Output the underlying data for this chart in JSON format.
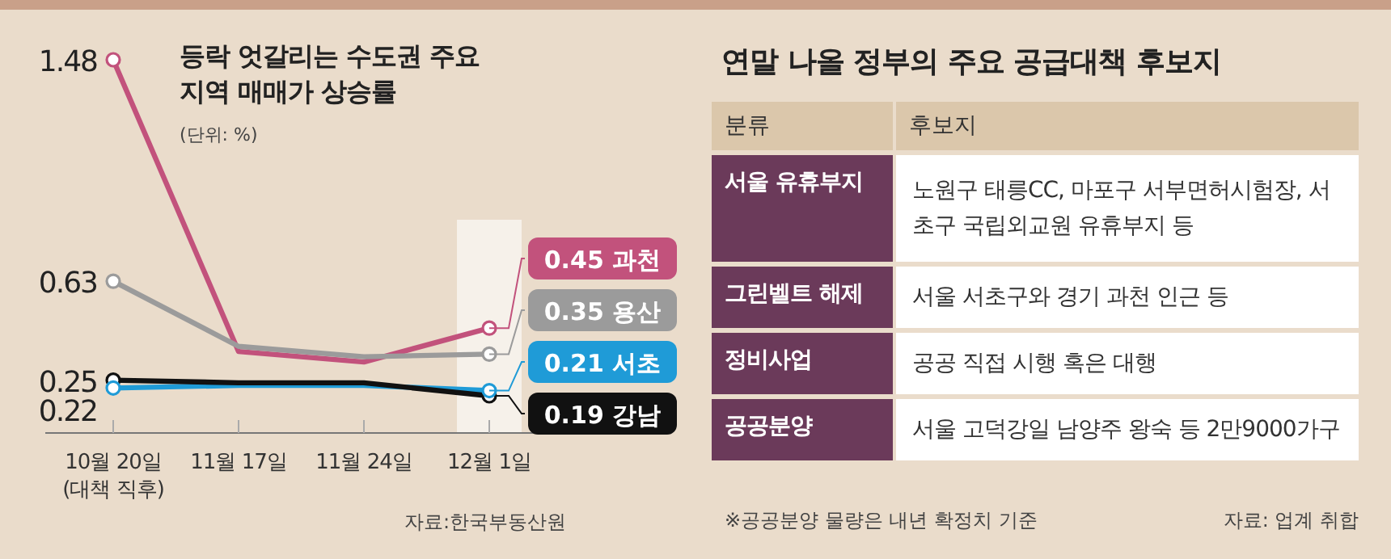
{
  "chart_data": [
    {
      "type": "line",
      "title": "등락 엇갈리는 수도권 주요 지역 매매가 상승률",
      "subtitle": "(단위: %)",
      "categories": [
        "10월 20일 (대책 직후)",
        "11월 17일",
        "11월 24일",
        "12월 1일"
      ],
      "series": [
        {
          "name": "과천",
          "color": "#c2527c",
          "values": [
            1.48,
            0.36,
            0.32,
            0.45
          ],
          "value_labels": [
            "1.48",
            null,
            null,
            "0.45"
          ]
        },
        {
          "name": "용산",
          "color": "#9b9b9b",
          "values": [
            0.63,
            0.38,
            0.34,
            0.35
          ],
          "value_labels": [
            "0.63",
            null,
            null,
            "0.35"
          ]
        },
        {
          "name": "서초",
          "color": "#1f9bd7",
          "values": [
            0.22,
            0.23,
            0.23,
            0.21
          ],
          "value_labels": [
            "0.22",
            null,
            null,
            "0.21"
          ]
        },
        {
          "name": "강남",
          "color": "#111111",
          "values": [
            0.25,
            0.24,
            0.24,
            0.19
          ],
          "value_labels": [
            "0.25",
            null,
            null,
            "0.19"
          ]
        }
      ],
      "marker": "circle",
      "bands": [
        {
          "axis": "x",
          "from": "12월 1일",
          "to": "12월 1일",
          "color": "#f6f1ea"
        }
      ],
      "annotations": [
        "자료:한국부동산원"
      ]
    },
    {
      "type": "other",
      "title": "연말 나올 정부의 주요 공급대책 후보지",
      "categories": [
        "서울 유휴부지",
        "그린벨트 해제",
        "정비사업",
        "공공분양"
      ],
      "annotations": [
        "분류",
        "후보지",
        "노원구 태릉CC, 마포구 서부면허시험장, 서초구 국립외교원 유휴부지 등",
        "서울 서초구와 경기 과천 인근 등",
        "공공 직접 시행 혹은 대행",
        "서울 고덕강일 남양주 왕숙 등 2만9000가구",
        "※공공분양 물량은 내년 확정치 기준",
        "자료: 업계 취합"
      ]
    }
  ]
}
